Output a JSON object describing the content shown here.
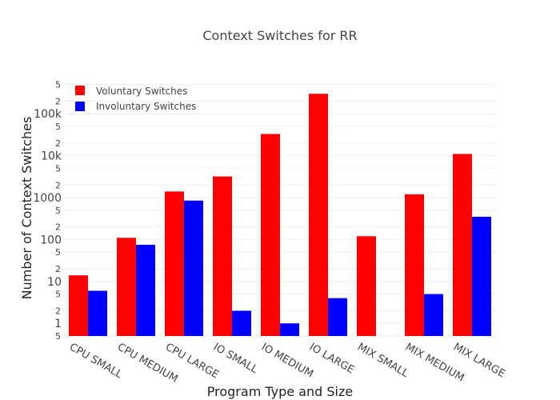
{
  "chart_data": {
    "type": "bar",
    "title": "Context Switches for RR",
    "xlabel": "Program Type and Size",
    "ylabel": "Number of Context Switches",
    "yscale": "log",
    "ylim": [
      0.5,
      500000
    ],
    "y_tick_labels": {
      "major": [
        {
          "value": 1,
          "label": "1"
        },
        {
          "value": 10,
          "label": "10"
        },
        {
          "value": 100,
          "label": "100"
        },
        {
          "value": 1000,
          "label": "1000"
        },
        {
          "value": 10000,
          "label": "10k"
        },
        {
          "value": 100000,
          "label": "100k"
        }
      ],
      "minor": [
        {
          "value": 0.5,
          "label": "5"
        },
        {
          "value": 2,
          "label": "2"
        },
        {
          "value": 5,
          "label": "5"
        },
        {
          "value": 20,
          "label": "2"
        },
        {
          "value": 50,
          "label": "5"
        },
        {
          "value": 200,
          "label": "2"
        },
        {
          "value": 500,
          "label": "5"
        },
        {
          "value": 2000,
          "label": "2"
        },
        {
          "value": 5000,
          "label": "5"
        },
        {
          "value": 20000,
          "label": "2"
        },
        {
          "value": 50000,
          "label": "5"
        },
        {
          "value": 200000,
          "label": "2"
        },
        {
          "value": 500000,
          "label": "5"
        }
      ]
    },
    "categories": [
      "CPU SMALL",
      "CPU MEDIUM",
      "CPU LARGE",
      "IO SMALL",
      "IO MEDIUM",
      "IO LARGE",
      "MIX SMALL",
      "MIX MEDIUM",
      "MIX LARGE"
    ],
    "series": [
      {
        "name": "Voluntary Switches",
        "color": "#ff0000",
        "values": [
          14,
          110,
          1400,
          3200,
          33000,
          300000,
          120,
          1200,
          11000
        ]
      },
      {
        "name": "Involuntary Switches",
        "color": "#0000ff",
        "values": [
          6,
          75,
          850,
          2,
          1,
          4,
          0,
          5,
          350
        ]
      }
    ],
    "legend": "top-left",
    "grid": true
  }
}
